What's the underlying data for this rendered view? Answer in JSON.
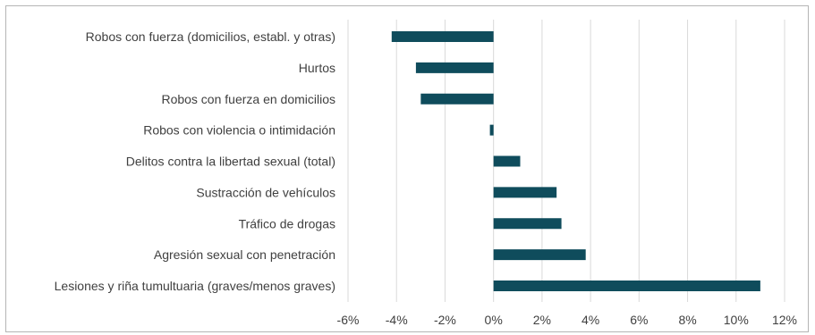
{
  "chart_data": {
    "type": "bar",
    "orientation": "horizontal",
    "categories": [
      "Robos con fuerza (domicilios, establ. y otras)",
      "Hurtos",
      "Robos con fuerza en domicilios",
      "Robos con violencia o intimidación",
      "Delitos contra la libertad sexual (total)",
      "Sustracción de vehículos",
      "Tráfico de drogas",
      "Agresión sexual con penetración",
      "Lesiones y riña tumultuaria (graves/menos graves)"
    ],
    "values": [
      -4.2,
      -3.2,
      -3.0,
      -0.15,
      1.1,
      2.6,
      2.8,
      3.8,
      11.0
    ],
    "xlim": [
      -6,
      12
    ],
    "xticks": [
      -6,
      -4,
      -2,
      0,
      2,
      4,
      6,
      8,
      10,
      12
    ],
    "xtick_labels": [
      "-6%",
      "-4%",
      "-2%",
      "0%",
      "2%",
      "4%",
      "6%",
      "8%",
      "10%",
      "12%"
    ],
    "unit": "%",
    "title": "",
    "xlabel": "",
    "ylabel": "",
    "grid": "vertical",
    "bar_color": "#0f4c5c"
  }
}
